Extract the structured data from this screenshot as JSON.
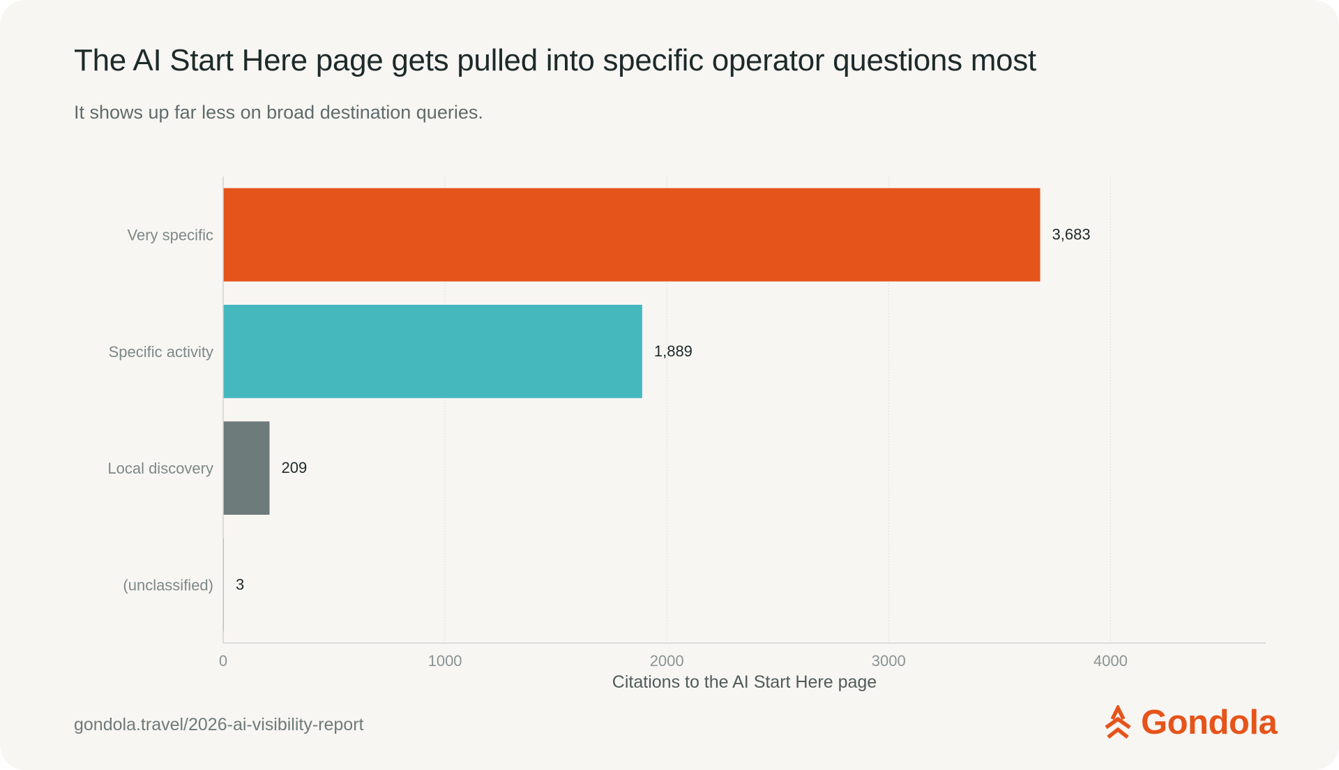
{
  "title": "The AI Start Here page gets pulled into specific operator questions most",
  "subtitle": "It shows up far less on broad destination queries.",
  "source": "gondola.travel/2026-ai-visibility-report",
  "brand": {
    "name": "Gondola",
    "icon": "gondola-chevron-logo-icon",
    "color": "#e5541a"
  },
  "chart_data": {
    "type": "bar",
    "orientation": "horizontal",
    "categories": [
      "Very specific",
      "Specific activity",
      "Local discovery",
      "(unclassified)"
    ],
    "values": [
      3683,
      1889,
      209,
      3
    ],
    "value_labels": [
      "3,683",
      "1,889",
      "209",
      "3"
    ],
    "colors": [
      "#e5541a",
      "#45b8be",
      "#6e7b7b",
      "#6e7b7b"
    ],
    "title": "The AI Start Here page gets pulled into specific operator questions most",
    "subtitle": "It shows up far less on broad destination queries.",
    "xlabel": "Citations to the AI Start Here page",
    "ylabel": "",
    "xlim": [
      0,
      4700
    ],
    "xticks": [
      0,
      1000,
      2000,
      3000,
      4000
    ],
    "xtick_labels": [
      "0",
      "1000",
      "2000",
      "3000",
      "4000"
    ],
    "grid": true,
    "legend": "none"
  }
}
